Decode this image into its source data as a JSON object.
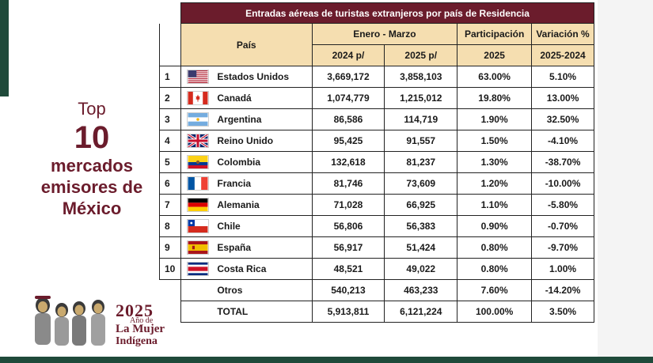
{
  "headline": {
    "top": "Top",
    "number": "10",
    "line1": "mercados",
    "line2": "emisores de",
    "line3": "México"
  },
  "logo": {
    "year": "2025",
    "line1": "Año de",
    "line2": "La Mujer",
    "line3": "Indígena",
    "figures_icon": "indigenous-women-illustration"
  },
  "table": {
    "title": "Entradas aéreas de turistas extranjeros por país de Residencia",
    "header": {
      "pais": "País",
      "periodo": "Enero - Marzo",
      "participacion": "Participación",
      "variacion": "Variación %",
      "sub_2024": "2024 p/",
      "sub_2025": "2025 p/",
      "sub_part": "2025",
      "sub_var": "2025-2024"
    },
    "rows": [
      {
        "rank": "1",
        "flag": "flag-usa-icon",
        "country": "Estados Unidos",
        "v2024": "3,669,172",
        "v2025": "3,858,103",
        "part": "63.00%",
        "var": "5.10%"
      },
      {
        "rank": "2",
        "flag": "flag-canada-icon",
        "country": "Canadá",
        "v2024": "1,074,779",
        "v2025": "1,215,012",
        "part": "19.80%",
        "var": "13.00%"
      },
      {
        "rank": "3",
        "flag": "flag-argentina-icon",
        "country": "Argentina",
        "v2024": "86,586",
        "v2025": "114,719",
        "part": "1.90%",
        "var": "32.50%"
      },
      {
        "rank": "4",
        "flag": "flag-uk-icon",
        "country": "Reino Unido",
        "v2024": "95,425",
        "v2025": "91,557",
        "part": "1.50%",
        "var": "-4.10%"
      },
      {
        "rank": "5",
        "flag": "flag-colombia-icon",
        "country": "Colombia",
        "v2024": "132,618",
        "v2025": "81,237",
        "part": "1.30%",
        "var": "-38.70%"
      },
      {
        "rank": "6",
        "flag": "flag-france-icon",
        "country": "Francia",
        "v2024": "81,746",
        "v2025": "73,609",
        "part": "1.20%",
        "var": "-10.00%"
      },
      {
        "rank": "7",
        "flag": "flag-germany-icon",
        "country": "Alemania",
        "v2024": "71,028",
        "v2025": "66,925",
        "part": "1.10%",
        "var": "-5.80%"
      },
      {
        "rank": "8",
        "flag": "flag-chile-icon",
        "country": "Chile",
        "v2024": "56,806",
        "v2025": "56,383",
        "part": "0.90%",
        "var": "-0.70%"
      },
      {
        "rank": "9",
        "flag": "flag-spain-icon",
        "country": "España",
        "v2024": "56,917",
        "v2025": "51,424",
        "part": "0.80%",
        "var": "-9.70%"
      },
      {
        "rank": "10",
        "flag": "flag-costa-rica-icon",
        "country": "Costa Rica",
        "v2024": "48,521",
        "v2025": "49,022",
        "part": "0.80%",
        "var": "1.00%"
      }
    ],
    "otros": {
      "label": "Otros",
      "v2024": "540,213",
      "v2025": "463,233",
      "part": "7.60%",
      "var": "-14.20%"
    },
    "total": {
      "label": "TOTAL",
      "v2024": "5,913,811",
      "v2025": "6,121,224",
      "part": "100.00%",
      "var": "3.50%"
    }
  },
  "colors": {
    "maroon": "#6b1c2c",
    "header_tan": "#f5deb0",
    "dark_green": "#1f4a3a"
  }
}
